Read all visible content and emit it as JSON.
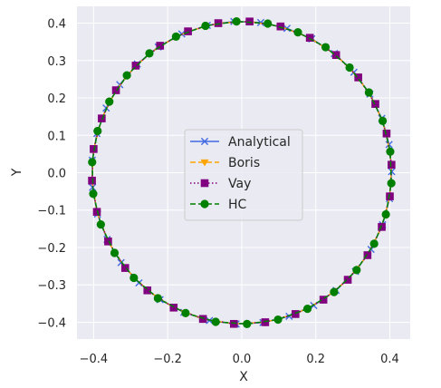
{
  "chart_data": {
    "type": "line",
    "xlabel": "X",
    "ylabel": "Y",
    "xlim": [
      -0.445,
      0.455
    ],
    "ylim": [
      -0.445,
      0.445
    ],
    "x_ticks": [
      -0.4,
      -0.2,
      0.0,
      0.2,
      0.4
    ],
    "y_ticks": [
      -0.4,
      -0.3,
      -0.2,
      -0.1,
      0.0,
      0.1,
      0.2,
      0.3,
      0.4
    ],
    "x_tick_labels": [
      "−0.4",
      "−0.2",
      "0.0",
      "0.2",
      "0.4"
    ],
    "y_tick_labels": [
      "−0.4",
      "−0.3",
      "−0.2",
      "−0.1",
      "0.0",
      "0.1",
      "0.2",
      "0.3",
      "0.4"
    ],
    "grid": true,
    "background": "#eaeaf2",
    "legend_position": "center",
    "radius": 0.405,
    "series": [
      {
        "name": "Analytical",
        "color": "#4169e1",
        "linestyle": "solid",
        "marker": "x",
        "marker_count": 35,
        "marker_phase_deg": 93
      },
      {
        "name": "Boris",
        "color": "#ffa500",
        "linestyle": "dashed",
        "marker": "triangle-down",
        "marker_count": 30,
        "marker_phase_deg": 87
      },
      {
        "name": "Vay",
        "color": "#800080",
        "linestyle": "dotted",
        "marker": "square",
        "marker_count": 30,
        "marker_phase_deg": 87
      },
      {
        "name": "HC",
        "color": "#008000",
        "linestyle": "dashed",
        "marker": "circle",
        "marker_count": 30,
        "marker_phase_deg": 92
      }
    ]
  }
}
